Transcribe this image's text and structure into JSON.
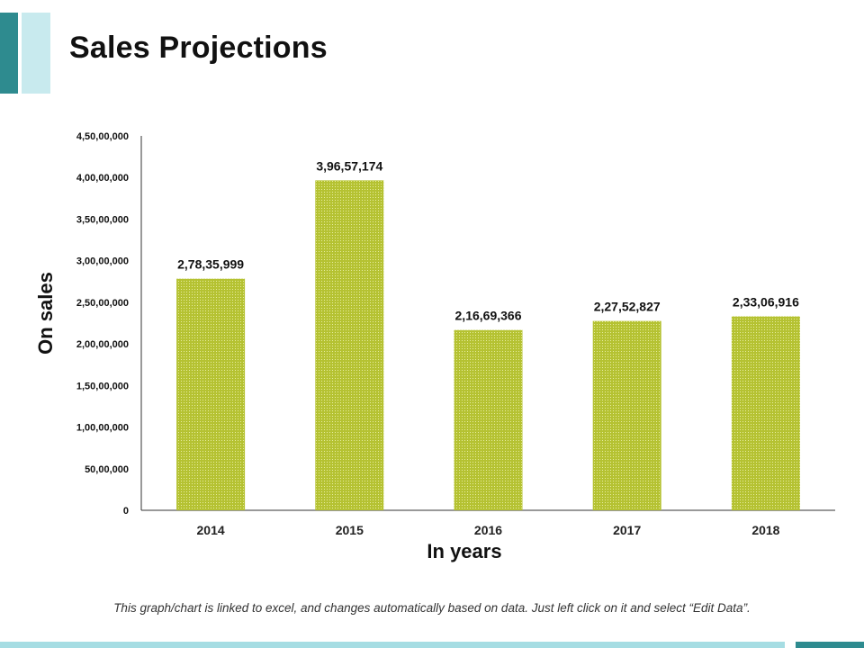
{
  "slide": {
    "title": "Sales Projections",
    "footnote": "This graph/chart is linked to excel, and changes automatically based on data. Just left click on it and select “Edit Data”."
  },
  "colors": {
    "bar": "#b5c232",
    "bar_stripe": "#e6eca0",
    "accent_dark": "#2e8b8f",
    "accent_light": "#c8eaee"
  },
  "chart_data": {
    "type": "bar",
    "title": "Sales Projections",
    "xlabel": "In years",
    "ylabel": "On sales",
    "categories": [
      "2014",
      "2015",
      "2016",
      "2017",
      "2018"
    ],
    "values": [
      27835999,
      39657174,
      21669366,
      22752827,
      23306916
    ],
    "value_labels": [
      "2,78,35,999",
      "3,96,57,174",
      "2,16,69,366",
      "2,27,52,827",
      "2,33,06,916"
    ],
    "ylim": [
      0,
      45000000
    ],
    "yticks": [
      0,
      5000000,
      10000000,
      15000000,
      20000000,
      25000000,
      30000000,
      35000000,
      40000000,
      45000000
    ],
    "ytick_labels": [
      "0",
      "50,00,000",
      "1,00,00,000",
      "1,50,00,000",
      "2,00,00,000",
      "2,50,00,000",
      "3,00,00,000",
      "3,50,00,000",
      "4,00,00,000",
      "4,50,00,000"
    ],
    "grid": false,
    "legend": "none"
  }
}
